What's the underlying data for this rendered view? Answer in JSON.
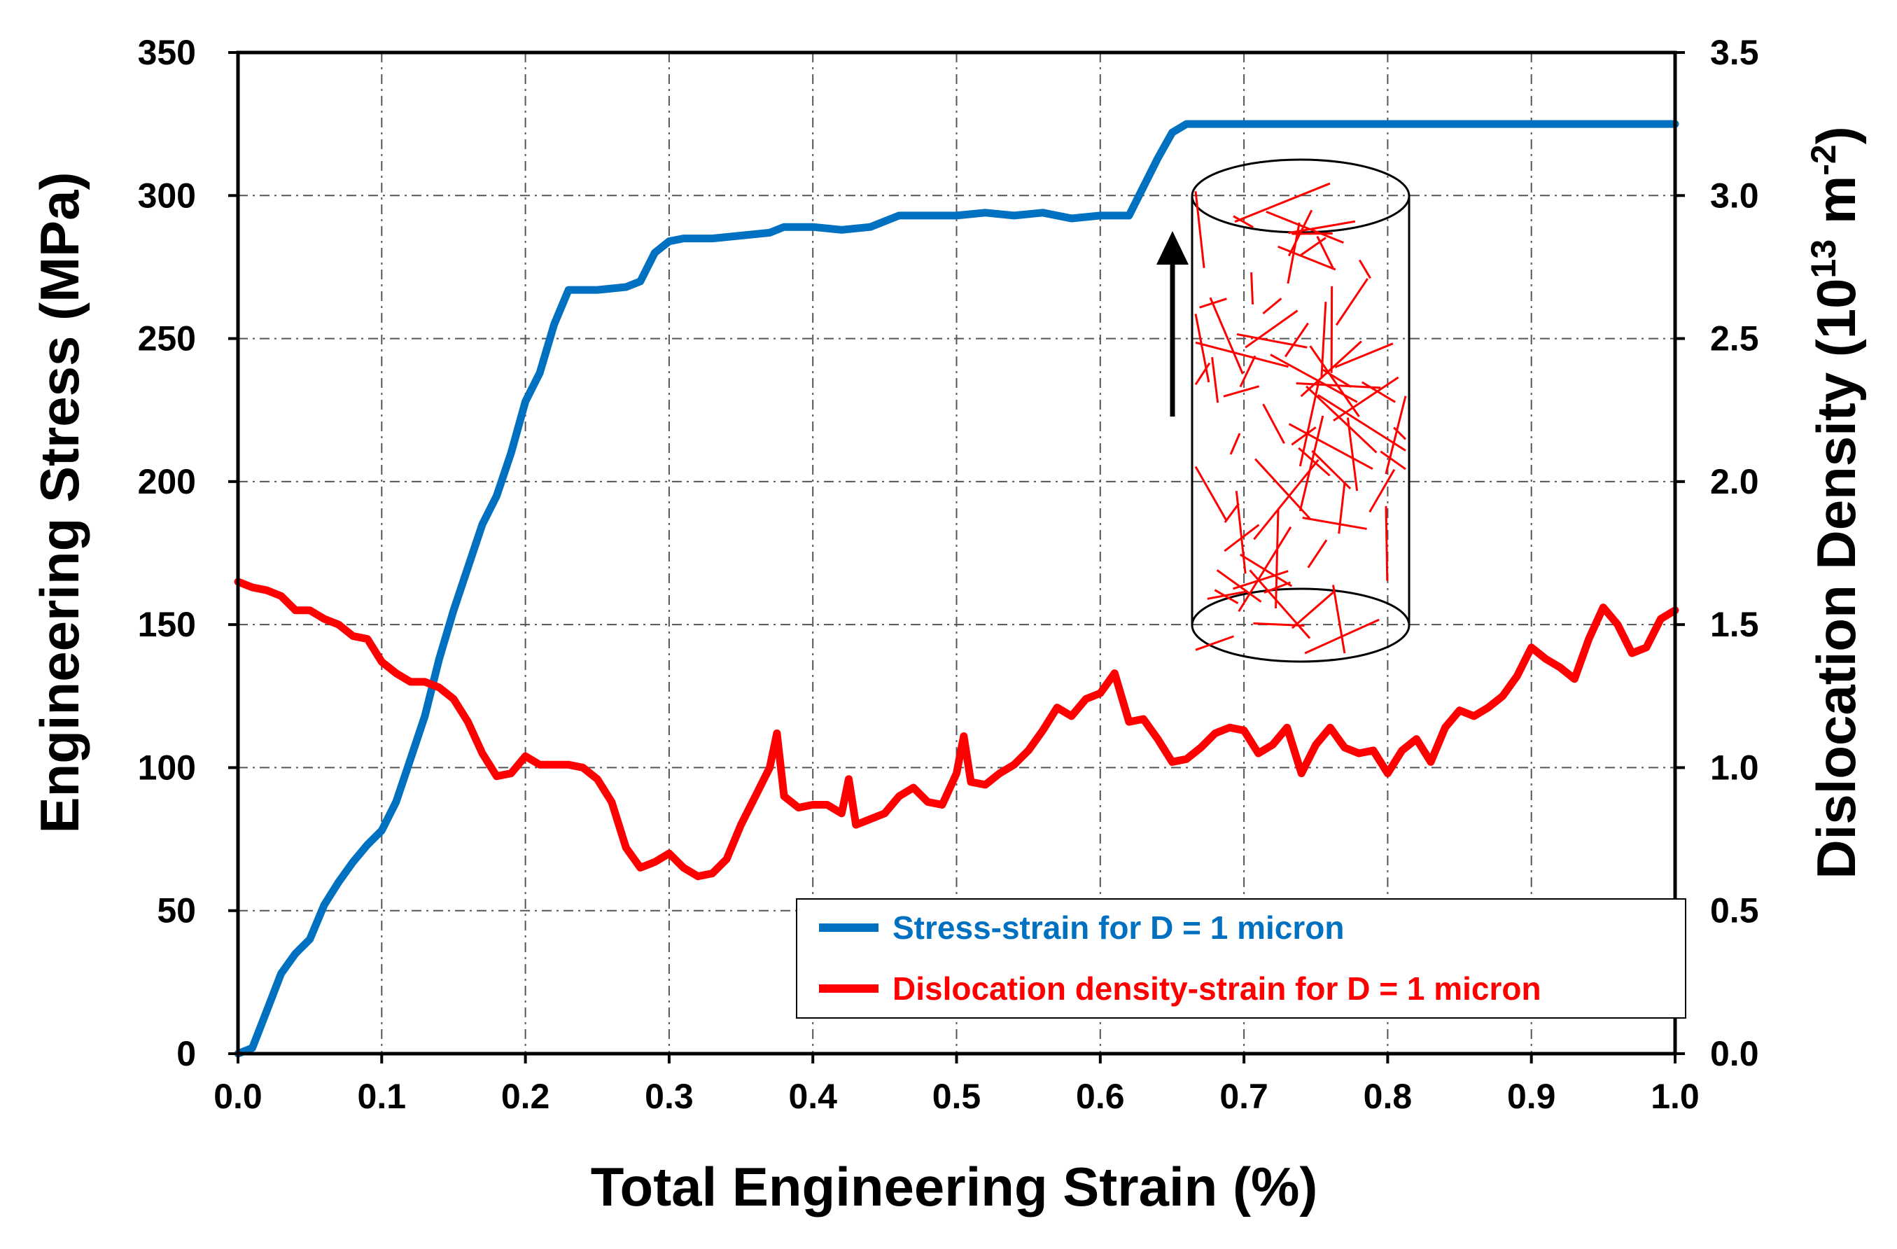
{
  "chart_data": {
    "type": "line",
    "title": "",
    "xlabel": "Total Engineering Strain (%)",
    "ylabel_left": "Engineering Stress (MPa)",
    "ylabel_right_main": "Dislocation Density (10",
    "ylabel_right_exp1": "13",
    "ylabel_right_unit": " m",
    "ylabel_right_exp2": "-2",
    "ylabel_right_close": ")",
    "xlim": [
      0,
      1.0
    ],
    "ylim_left": [
      0,
      350
    ],
    "ylim_right": [
      0,
      3.5
    ],
    "x_ticks": [
      "0.0",
      "0.1",
      "0.2",
      "0.3",
      "0.4",
      "0.5",
      "0.6",
      "0.7",
      "0.8",
      "0.9",
      "1.0"
    ],
    "y_left_ticks": [
      "0",
      "50",
      "100",
      "150",
      "200",
      "250",
      "300",
      "350"
    ],
    "y_right_ticks": [
      "0.0",
      "0.5",
      "1.0",
      "1.5",
      "2.0",
      "2.5",
      "3.0",
      "3.5"
    ],
    "grid": true,
    "legend_position": "bottom-right",
    "colors": {
      "stress": "#0070C0",
      "density": "#FF0000"
    },
    "series": [
      {
        "name": "Stress-strain for D = 1 micron",
        "axis": "left",
        "points": [
          [
            0.0,
            0
          ],
          [
            0.01,
            2
          ],
          [
            0.02,
            15
          ],
          [
            0.03,
            28
          ],
          [
            0.04,
            35
          ],
          [
            0.05,
            40
          ],
          [
            0.06,
            52
          ],
          [
            0.07,
            60
          ],
          [
            0.08,
            67
          ],
          [
            0.09,
            73
          ],
          [
            0.1,
            78
          ],
          [
            0.11,
            88
          ],
          [
            0.12,
            103
          ],
          [
            0.13,
            118
          ],
          [
            0.14,
            138
          ],
          [
            0.15,
            155
          ],
          [
            0.16,
            170
          ],
          [
            0.17,
            185
          ],
          [
            0.18,
            195
          ],
          [
            0.19,
            210
          ],
          [
            0.2,
            228
          ],
          [
            0.21,
            238
          ],
          [
            0.22,
            255
          ],
          [
            0.23,
            267
          ],
          [
            0.25,
            267
          ],
          [
            0.27,
            268
          ],
          [
            0.28,
            270
          ],
          [
            0.29,
            280
          ],
          [
            0.3,
            284
          ],
          [
            0.31,
            285
          ],
          [
            0.33,
            285
          ],
          [
            0.35,
            286
          ],
          [
            0.37,
            287
          ],
          [
            0.38,
            289
          ],
          [
            0.4,
            289
          ],
          [
            0.42,
            288
          ],
          [
            0.44,
            289
          ],
          [
            0.46,
            293
          ],
          [
            0.48,
            293
          ],
          [
            0.5,
            293
          ],
          [
            0.52,
            294
          ],
          [
            0.54,
            293
          ],
          [
            0.56,
            294
          ],
          [
            0.58,
            292
          ],
          [
            0.6,
            293
          ],
          [
            0.62,
            293
          ],
          [
            0.63,
            303
          ],
          [
            0.64,
            313
          ],
          [
            0.65,
            322
          ],
          [
            0.66,
            325
          ],
          [
            0.7,
            325
          ],
          [
            0.8,
            325
          ],
          [
            0.9,
            325
          ],
          [
            1.0,
            325
          ]
        ]
      },
      {
        "name": "Dislocation density-strain for D = 1 micron",
        "axis": "right",
        "points": [
          [
            0.0,
            1.65
          ],
          [
            0.01,
            1.63
          ],
          [
            0.02,
            1.62
          ],
          [
            0.03,
            1.6
          ],
          [
            0.04,
            1.55
          ],
          [
            0.05,
            1.55
          ],
          [
            0.06,
            1.52
          ],
          [
            0.07,
            1.5
          ],
          [
            0.08,
            1.46
          ],
          [
            0.09,
            1.45
          ],
          [
            0.1,
            1.37
          ],
          [
            0.11,
            1.33
          ],
          [
            0.12,
            1.3
          ],
          [
            0.13,
            1.3
          ],
          [
            0.14,
            1.28
          ],
          [
            0.15,
            1.24
          ],
          [
            0.16,
            1.16
          ],
          [
            0.17,
            1.05
          ],
          [
            0.18,
            0.97
          ],
          [
            0.19,
            0.98
          ],
          [
            0.2,
            1.04
          ],
          [
            0.21,
            1.01
          ],
          [
            0.22,
            1.01
          ],
          [
            0.23,
            1.01
          ],
          [
            0.24,
            1.0
          ],
          [
            0.25,
            0.96
          ],
          [
            0.26,
            0.88
          ],
          [
            0.27,
            0.72
          ],
          [
            0.28,
            0.65
          ],
          [
            0.29,
            0.67
          ],
          [
            0.3,
            0.7
          ],
          [
            0.31,
            0.65
          ],
          [
            0.32,
            0.62
          ],
          [
            0.33,
            0.63
          ],
          [
            0.34,
            0.68
          ],
          [
            0.35,
            0.8
          ],
          [
            0.36,
            0.9
          ],
          [
            0.37,
            1.0
          ],
          [
            0.375,
            1.12
          ],
          [
            0.38,
            0.9
          ],
          [
            0.39,
            0.86
          ],
          [
            0.4,
            0.87
          ],
          [
            0.41,
            0.87
          ],
          [
            0.42,
            0.84
          ],
          [
            0.425,
            0.96
          ],
          [
            0.43,
            0.8
          ],
          [
            0.44,
            0.82
          ],
          [
            0.45,
            0.84
          ],
          [
            0.46,
            0.9
          ],
          [
            0.47,
            0.93
          ],
          [
            0.48,
            0.88
          ],
          [
            0.49,
            0.87
          ],
          [
            0.5,
            0.98
          ],
          [
            0.505,
            1.11
          ],
          [
            0.51,
            0.95
          ],
          [
            0.52,
            0.94
          ],
          [
            0.53,
            0.98
          ],
          [
            0.54,
            1.01
          ],
          [
            0.55,
            1.06
          ],
          [
            0.56,
            1.13
          ],
          [
            0.57,
            1.21
          ],
          [
            0.58,
            1.18
          ],
          [
            0.59,
            1.24
          ],
          [
            0.6,
            1.26
          ],
          [
            0.61,
            1.33
          ],
          [
            0.62,
            1.16
          ],
          [
            0.63,
            1.17
          ],
          [
            0.64,
            1.1
          ],
          [
            0.65,
            1.02
          ],
          [
            0.66,
            1.03
          ],
          [
            0.67,
            1.07
          ],
          [
            0.68,
            1.12
          ],
          [
            0.69,
            1.14
          ],
          [
            0.7,
            1.13
          ],
          [
            0.71,
            1.05
          ],
          [
            0.72,
            1.08
          ],
          [
            0.73,
            1.14
          ],
          [
            0.74,
            0.98
          ],
          [
            0.75,
            1.08
          ],
          [
            0.76,
            1.14
          ],
          [
            0.77,
            1.07
          ],
          [
            0.78,
            1.05
          ],
          [
            0.79,
            1.06
          ],
          [
            0.8,
            0.98
          ],
          [
            0.81,
            1.06
          ],
          [
            0.82,
            1.1
          ],
          [
            0.83,
            1.02
          ],
          [
            0.84,
            1.14
          ],
          [
            0.85,
            1.2
          ],
          [
            0.86,
            1.18
          ],
          [
            0.87,
            1.21
          ],
          [
            0.88,
            1.25
          ],
          [
            0.89,
            1.32
          ],
          [
            0.9,
            1.42
          ],
          [
            0.91,
            1.38
          ],
          [
            0.92,
            1.35
          ],
          [
            0.93,
            1.31
          ],
          [
            0.94,
            1.45
          ],
          [
            0.95,
            1.56
          ],
          [
            0.96,
            1.5
          ],
          [
            0.97,
            1.4
          ],
          [
            0.98,
            1.42
          ],
          [
            0.99,
            1.52
          ],
          [
            1.0,
            1.55
          ]
        ]
      }
    ]
  }
}
